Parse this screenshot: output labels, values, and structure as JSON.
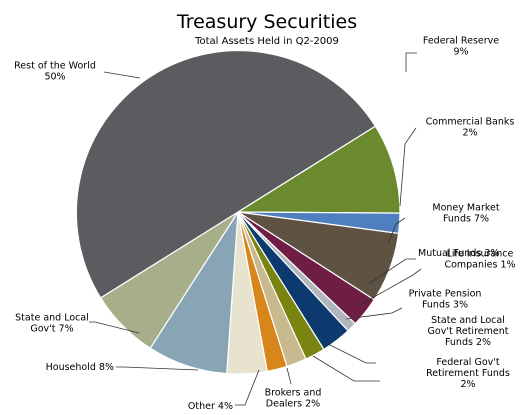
{
  "chart_data": {
    "type": "pie",
    "title": "Treasury Securities",
    "subtitle": "Total Assets Held in Q2-2009",
    "slices": [
      {
        "label": [
          "Federal Reserve",
          "9%"
        ],
        "value": 9,
        "color": "#6b8a2e"
      },
      {
        "label": [
          "Commercial Banks",
          "2%"
        ],
        "value": 2,
        "color": "#4f7fbf"
      },
      {
        "label": [
          "Money Market",
          "Funds 7%"
        ],
        "value": 7,
        "color": "#5e5242"
      },
      {
        "label": [
          "Mutual Funds 3%"
        ],
        "value": 3,
        "color": "#6e1d45"
      },
      {
        "label": [
          "Life Insurance",
          "Companies 1%"
        ],
        "value": 1,
        "color": "#b0b6bc"
      },
      {
        "label": [
          "Private Pension",
          "Funds 3%"
        ],
        "value": 3,
        "color": "#0d3a6e"
      },
      {
        "label": [
          "State and Local",
          "Gov't Retirement",
          "Funds 2%"
        ],
        "value": 2,
        "color": "#7a8410"
      },
      {
        "label": [
          "Federal Gov't",
          "Retirement Funds",
          "2%"
        ],
        "value": 2,
        "color": "#c8b98e"
      },
      {
        "label": [
          "Brokers and",
          "Dealers 2%"
        ],
        "value": 2,
        "color": "#d6861a"
      },
      {
        "label": [
          "Other 4%"
        ],
        "value": 4,
        "color": "#e7e3cf"
      },
      {
        "label": [
          "Household 8%"
        ],
        "value": 8,
        "color": "#87a5b5"
      },
      {
        "label": [
          "State and Local",
          "Gov't 7%"
        ],
        "value": 7,
        "color": "#a7ae8a"
      },
      {
        "label": [
          "Rest of the World",
          "50%"
        ],
        "value": 50,
        "color": "#5a5c60"
      }
    ]
  }
}
